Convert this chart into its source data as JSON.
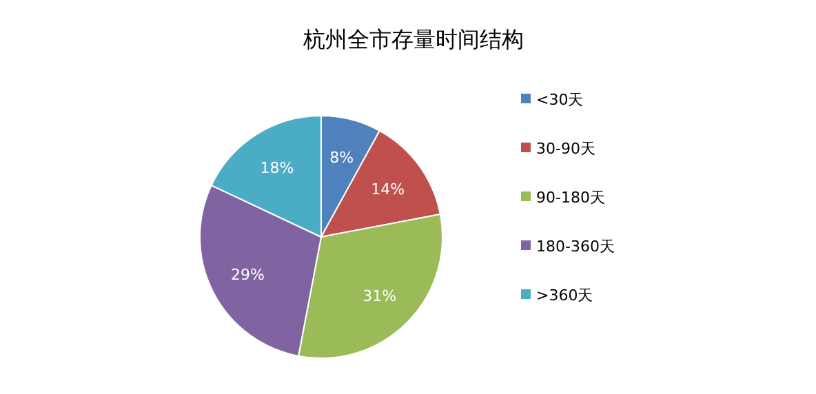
{
  "chart_data": {
    "type": "pie",
    "title": "杭州全市存量时间结构",
    "categories": [
      "<30天",
      "30-90天",
      "90-180天",
      "180-360天",
      ">360天"
    ],
    "values": [
      8,
      14,
      31,
      29,
      18
    ],
    "value_labels": [
      "8%",
      "14%",
      "31%",
      "29%",
      "18%"
    ],
    "colors": [
      "#4f81bd",
      "#c0504d",
      "#9bbb59",
      "#8064a2",
      "#4bacc6"
    ],
    "legend": "right"
  }
}
